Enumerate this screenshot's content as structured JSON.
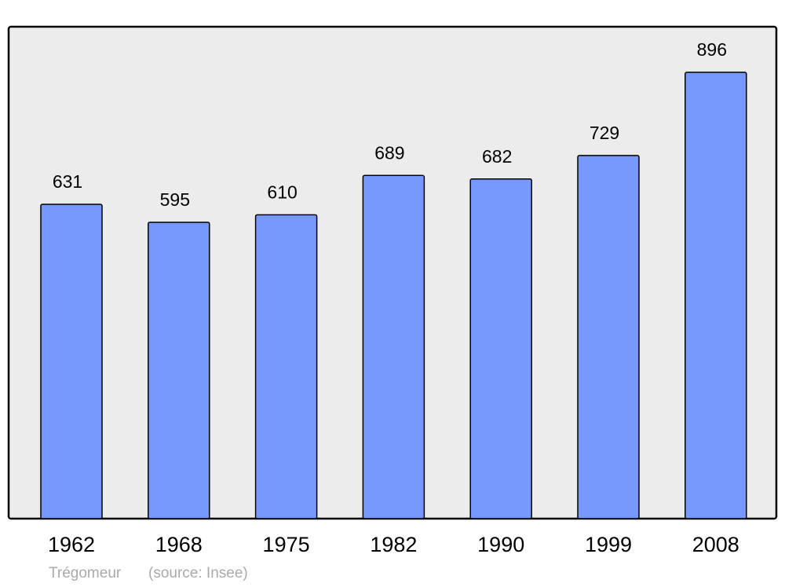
{
  "chart_data": {
    "type": "bar",
    "categories": [
      "1962",
      "1968",
      "1975",
      "1982",
      "1990",
      "1999",
      "2008"
    ],
    "values": [
      631,
      595,
      610,
      689,
      682,
      729,
      896
    ],
    "color": "#7799ff",
    "ylim": [
      0,
      986
    ],
    "place": "Trégomeur",
    "source": "(source: Insee)"
  }
}
